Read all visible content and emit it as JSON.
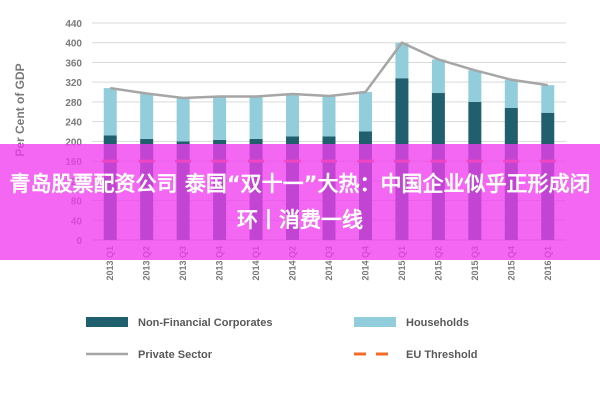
{
  "overlay": {
    "caption": "青岛股票配资公司 泰国“双十一”大热：中国企业似乎正形成闭环丨消费一线"
  },
  "chart_data": {
    "type": "bar",
    "stacked": true,
    "ylabel": "Per Cent of GDP",
    "ylim": [
      0,
      440
    ],
    "yticks": [
      0,
      40,
      80,
      120,
      160,
      200,
      240,
      280,
      320,
      360,
      400,
      440
    ],
    "grid": true,
    "legend_position": "bottom",
    "categories": [
      "2013 Q1",
      "2013 Q2",
      "2013 Q3",
      "2013 Q4",
      "2014 Q1",
      "2014 Q2",
      "2014 Q3",
      "2014 Q4",
      "2015 Q1",
      "2015 Q2",
      "2015 Q3",
      "2015 Q4",
      "2016 Q1"
    ],
    "series": [
      {
        "name": "Non-Financial Corporates",
        "kind": "bar",
        "color": "#1f5f6e",
        "values": [
          212,
          205,
          200,
          203,
          205,
          210,
          210,
          220,
          328,
          298,
          280,
          268,
          258
        ]
      },
      {
        "name": "Households",
        "kind": "bar",
        "color": "#92cddc",
        "values": [
          96,
          92,
          88,
          88,
          86,
          86,
          82,
          80,
          72,
          68,
          64,
          57,
          56
        ]
      },
      {
        "name": "Private Sector",
        "kind": "line",
        "color": "#a6a6a6",
        "values": [
          308,
          297,
          288,
          291,
          291,
          296,
          292,
          300,
          400,
          366,
          344,
          325,
          314
        ]
      },
      {
        "name": "EU Threshold",
        "kind": "dashed",
        "color": "#f36b2a",
        "values": [
          160,
          160,
          160,
          160,
          160,
          160,
          160,
          160,
          160,
          160,
          160,
          160,
          160
        ]
      }
    ]
  }
}
